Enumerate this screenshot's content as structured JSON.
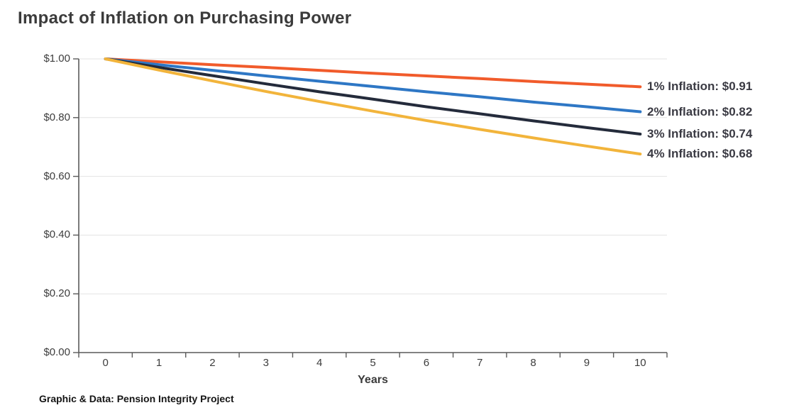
{
  "title": "Impact of Inflation on Purchasing Power",
  "footer": "Graphic & Data: Pension Integrity Project",
  "chart_data": {
    "type": "line",
    "title": "Impact of Inflation on Purchasing Power",
    "xlabel": "Years",
    "ylabel": "",
    "x": [
      0,
      1,
      2,
      3,
      4,
      5,
      6,
      7,
      8,
      9,
      10
    ],
    "x_tick_labels": [
      "0",
      "1",
      "2",
      "3",
      "4",
      "5",
      "6",
      "7",
      "8",
      "9",
      "10"
    ],
    "y_ticks": [
      0,
      0.2,
      0.4,
      0.6,
      0.8,
      1.0
    ],
    "y_tick_labels": [
      "$0.00",
      "$0.20",
      "$0.40",
      "$0.60",
      "$0.80",
      "$1.00"
    ],
    "ylim": [
      0,
      1
    ],
    "grid": "horizontal",
    "legend_position": "line-end-labels-right",
    "series": [
      {
        "name": "1% Inflation",
        "end_label": "1% Inflation: $0.91",
        "color": "#F15B2B",
        "values": [
          1.0,
          0.99,
          0.98,
          0.971,
          0.961,
          0.951,
          0.942,
          0.933,
          0.923,
          0.914,
          0.905
        ]
      },
      {
        "name": "2% Inflation",
        "end_label": "2% Inflation: $0.82",
        "color": "#2E77C5",
        "values": [
          1.0,
          0.98,
          0.961,
          0.942,
          0.924,
          0.906,
          0.888,
          0.871,
          0.853,
          0.837,
          0.82
        ]
      },
      {
        "name": "3% Inflation",
        "end_label": "3% Inflation: $0.74",
        "color": "#242B3B",
        "values": [
          1.0,
          0.971,
          0.943,
          0.915,
          0.888,
          0.863,
          0.837,
          0.813,
          0.789,
          0.766,
          0.744
        ]
      },
      {
        "name": "4% Inflation",
        "end_label": "4% Inflation: $0.68",
        "color": "#F2B43B",
        "values": [
          1.0,
          0.962,
          0.925,
          0.889,
          0.855,
          0.822,
          0.79,
          0.76,
          0.731,
          0.703,
          0.676
        ]
      }
    ],
    "style": {
      "grid_color": "#E3E3E3",
      "axis_color": "#5A5A5A",
      "line_width": 4
    }
  }
}
